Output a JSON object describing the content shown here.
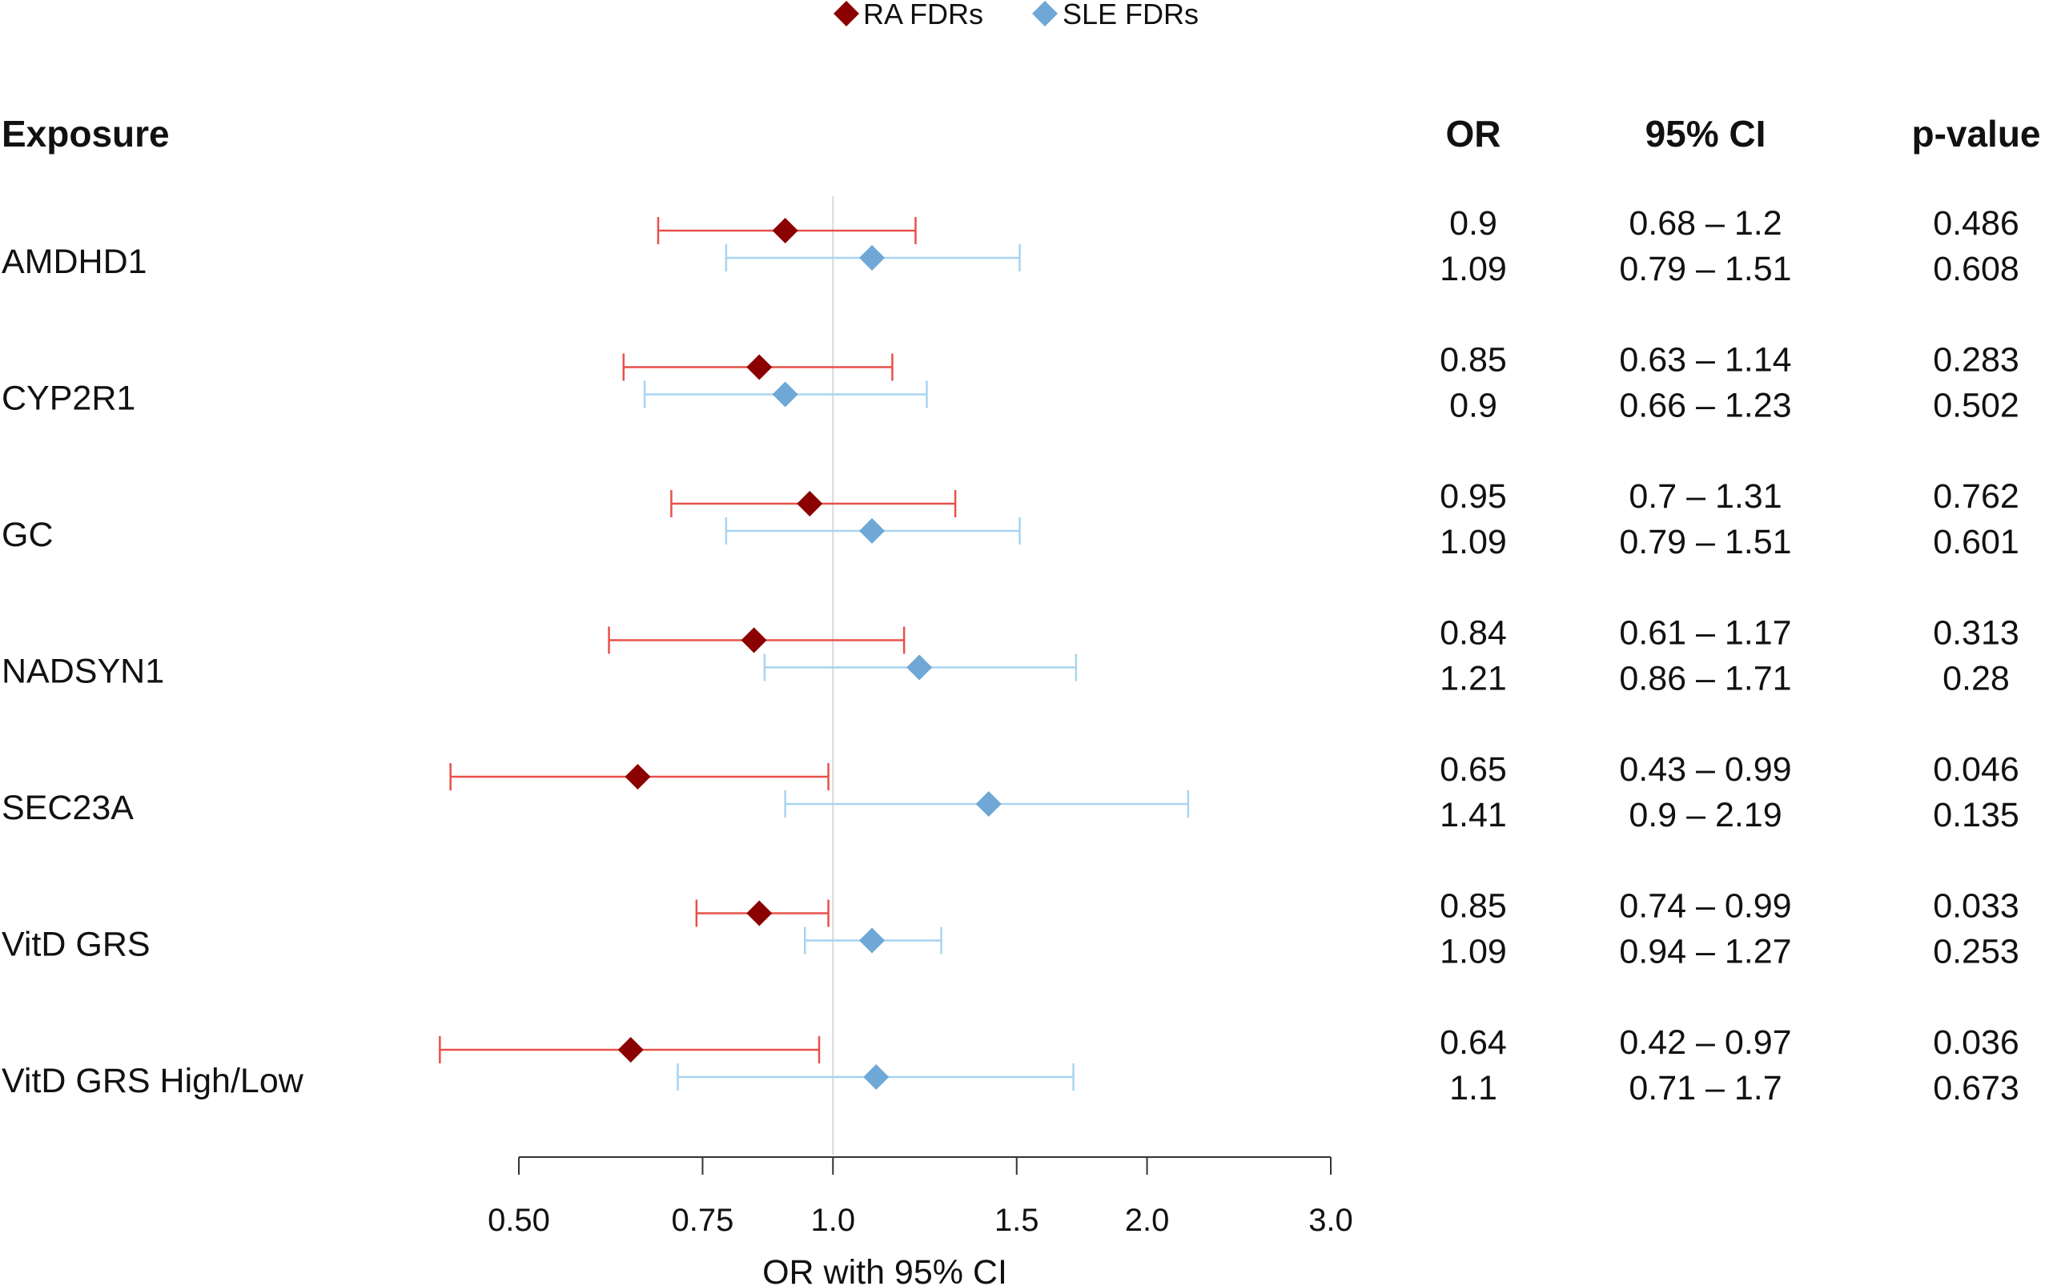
{
  "chart_data": {
    "type": "forest",
    "xlabel": "OR with 95% CI",
    "xscale": "log",
    "xlim": [
      0.5,
      3.0
    ],
    "ticks": [
      "0.50",
      "0.75",
      "1.0",
      "1.5",
      "2.0",
      "3.0"
    ],
    "tick_values": [
      0.5,
      0.75,
      1.0,
      1.5,
      2.0,
      3.0
    ],
    "reference_line": 1.0,
    "legend_position": "top-center",
    "columns": {
      "exposure": "Exposure",
      "or": "OR",
      "ci": "95% CI",
      "p": "p-value"
    },
    "series": [
      {
        "name": "RA FDRs",
        "color": "#8B0000",
        "ci_color": "#E8504A"
      },
      {
        "name": "SLE FDRs",
        "color": "#6FA8D6",
        "ci_color": "#A8D4F0"
      }
    ],
    "rows": [
      {
        "exposure": "AMDHD1",
        "ra": {
          "or": 0.9,
          "lo": 0.68,
          "hi": 1.2,
          "or_text": "0.9",
          "ci_text": "0.68 – 1.2",
          "p_text": "0.486"
        },
        "sle": {
          "or": 1.09,
          "lo": 0.79,
          "hi": 1.51,
          "or_text": "1.09",
          "ci_text": "0.79 – 1.51",
          "p_text": "0.608"
        }
      },
      {
        "exposure": "CYP2R1",
        "ra": {
          "or": 0.85,
          "lo": 0.63,
          "hi": 1.14,
          "or_text": "0.85",
          "ci_text": "0.63 – 1.14",
          "p_text": "0.283"
        },
        "sle": {
          "or": 0.9,
          "lo": 0.66,
          "hi": 1.23,
          "or_text": "0.9",
          "ci_text": "0.66 – 1.23",
          "p_text": "0.502"
        }
      },
      {
        "exposure": "GC",
        "ra": {
          "or": 0.95,
          "lo": 0.7,
          "hi": 1.31,
          "or_text": "0.95",
          "ci_text": "0.7 – 1.31",
          "p_text": "0.762"
        },
        "sle": {
          "or": 1.09,
          "lo": 0.79,
          "hi": 1.51,
          "or_text": "1.09",
          "ci_text": "0.79 – 1.51",
          "p_text": "0.601"
        }
      },
      {
        "exposure": "NADSYN1",
        "ra": {
          "or": 0.84,
          "lo": 0.61,
          "hi": 1.17,
          "or_text": "0.84",
          "ci_text": "0.61 – 1.17",
          "p_text": "0.313"
        },
        "sle": {
          "or": 1.21,
          "lo": 0.86,
          "hi": 1.71,
          "or_text": "1.21",
          "ci_text": "0.86 – 1.71",
          "p_text": "0.28"
        }
      },
      {
        "exposure": "SEC23A",
        "ra": {
          "or": 0.65,
          "lo": 0.43,
          "hi": 0.99,
          "or_text": "0.65",
          "ci_text": "0.43 – 0.99",
          "p_text": "0.046"
        },
        "sle": {
          "or": 1.41,
          "lo": 0.9,
          "hi": 2.19,
          "or_text": "1.41",
          "ci_text": "0.9 – 2.19",
          "p_text": "0.135"
        }
      },
      {
        "exposure": "VitD GRS",
        "ra": {
          "or": 0.85,
          "lo": 0.74,
          "hi": 0.99,
          "or_text": "0.85",
          "ci_text": "0.74 – 0.99",
          "p_text": "0.033"
        },
        "sle": {
          "or": 1.09,
          "lo": 0.94,
          "hi": 1.27,
          "or_text": "1.09",
          "ci_text": "0.94 – 1.27",
          "p_text": "0.253"
        }
      },
      {
        "exposure": "VitD GRS High/Low",
        "ra": {
          "or": 0.64,
          "lo": 0.42,
          "hi": 0.97,
          "or_text": "0.64",
          "ci_text": "0.42 – 0.97",
          "p_text": "0.036"
        },
        "sle": {
          "or": 1.1,
          "lo": 0.71,
          "hi": 1.7,
          "or_text": "1.1",
          "ci_text": "0.71 – 1.7",
          "p_text": "0.673"
        }
      }
    ]
  }
}
